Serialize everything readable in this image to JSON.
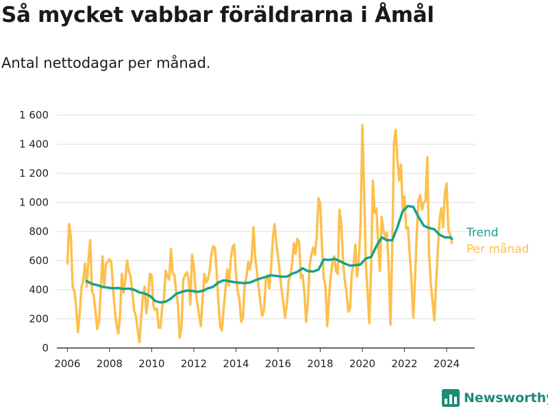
{
  "title": "Så mycket vabbar föräldrarna i Åmål",
  "subtitle": "Antal nettodagar per månad.",
  "brand": {
    "name": "Newsworthy",
    "icon": "bar-chart-logo-icon"
  },
  "colors": {
    "monthly": "#fdc04d",
    "trend": "#17a08c",
    "grid": "#dcdcdc",
    "axis": "#333333"
  },
  "chart_data": {
    "type": "line",
    "x_ticks": [
      "2006",
      "2008",
      "2010",
      "2012",
      "2014",
      "2016",
      "2018",
      "2020",
      "2022",
      "2024"
    ],
    "y_ticks": [
      "0",
      "200",
      "400",
      "600",
      "800",
      "1 000",
      "1 200",
      "1 400",
      "1 600"
    ],
    "y_tick_values": [
      0,
      200,
      400,
      600,
      800,
      1000,
      1200,
      1400,
      1600
    ],
    "xlim": [
      "2005-07",
      "2025-05"
    ],
    "ylim": [
      0,
      1600
    ],
    "grid": true,
    "legend": "right",
    "series": [
      {
        "name": "Per månad",
        "color": "#fdc04d",
        "points": [
          [
            "2006-01",
            580
          ],
          [
            "2006-02",
            850
          ],
          [
            "2006-03",
            760
          ],
          [
            "2006-04",
            420
          ],
          [
            "2006-05",
            390
          ],
          [
            "2006-06",
            280
          ],
          [
            "2006-07",
            110
          ],
          [
            "2006-08",
            230
          ],
          [
            "2006-09",
            420
          ],
          [
            "2006-10",
            460
          ],
          [
            "2006-11",
            580
          ],
          [
            "2006-12",
            420
          ],
          [
            "2007-01",
            600
          ],
          [
            "2007-02",
            740
          ],
          [
            "2007-03",
            390
          ],
          [
            "2007-04",
            360
          ],
          [
            "2007-05",
            250
          ],
          [
            "2007-06",
            130
          ],
          [
            "2007-07",
            180
          ],
          [
            "2007-08",
            390
          ],
          [
            "2007-09",
            630
          ],
          [
            "2007-10",
            430
          ],
          [
            "2007-11",
            580
          ],
          [
            "2007-12",
            590
          ],
          [
            "2008-01",
            610
          ],
          [
            "2008-02",
            590
          ],
          [
            "2008-03",
            410
          ],
          [
            "2008-04",
            260
          ],
          [
            "2008-05",
            160
          ],
          [
            "2008-06",
            100
          ],
          [
            "2008-07",
            230
          ],
          [
            "2008-08",
            510
          ],
          [
            "2008-09",
            380
          ],
          [
            "2008-10",
            470
          ],
          [
            "2008-11",
            600
          ],
          [
            "2008-12",
            530
          ],
          [
            "2009-01",
            490
          ],
          [
            "2009-02",
            390
          ],
          [
            "2009-03",
            260
          ],
          [
            "2009-04",
            220
          ],
          [
            "2009-05",
            130
          ],
          [
            "2009-06",
            40
          ],
          [
            "2009-07",
            200
          ],
          [
            "2009-08",
            360
          ],
          [
            "2009-09",
            420
          ],
          [
            "2009-10",
            240
          ],
          [
            "2009-11",
            350
          ],
          [
            "2009-12",
            510
          ],
          [
            "2010-01",
            500
          ],
          [
            "2010-02",
            290
          ],
          [
            "2010-03",
            260
          ],
          [
            "2010-04",
            270
          ],
          [
            "2010-05",
            140
          ],
          [
            "2010-06",
            140
          ],
          [
            "2010-07",
            280
          ],
          [
            "2010-08",
            340
          ],
          [
            "2010-09",
            530
          ],
          [
            "2010-10",
            490
          ],
          [
            "2010-11",
            470
          ],
          [
            "2010-12",
            680
          ],
          [
            "2011-01",
            510
          ],
          [
            "2011-02",
            500
          ],
          [
            "2011-03",
            380
          ],
          [
            "2011-04",
            300
          ],
          [
            "2011-05",
            70
          ],
          [
            "2011-06",
            140
          ],
          [
            "2011-07",
            470
          ],
          [
            "2011-08",
            500
          ],
          [
            "2011-09",
            520
          ],
          [
            "2011-10",
            480
          ],
          [
            "2011-11",
            300
          ],
          [
            "2011-12",
            640
          ],
          [
            "2012-01",
            560
          ],
          [
            "2012-02",
            390
          ],
          [
            "2012-03",
            310
          ],
          [
            "2012-04",
            230
          ],
          [
            "2012-05",
            150
          ],
          [
            "2012-06",
            330
          ],
          [
            "2012-07",
            510
          ],
          [
            "2012-08",
            450
          ],
          [
            "2012-09",
            470
          ],
          [
            "2012-10",
            530
          ],
          [
            "2012-11",
            640
          ],
          [
            "2012-12",
            700
          ],
          [
            "2013-01",
            690
          ],
          [
            "2013-02",
            530
          ],
          [
            "2013-03",
            320
          ],
          [
            "2013-04",
            150
          ],
          [
            "2013-05",
            120
          ],
          [
            "2013-06",
            270
          ],
          [
            "2013-07",
            400
          ],
          [
            "2013-08",
            540
          ],
          [
            "2013-09",
            430
          ],
          [
            "2013-10",
            600
          ],
          [
            "2013-11",
            690
          ],
          [
            "2013-12",
            710
          ],
          [
            "2014-01",
            520
          ],
          [
            "2014-02",
            390
          ],
          [
            "2014-03",
            330
          ],
          [
            "2014-04",
            180
          ],
          [
            "2014-05",
            210
          ],
          [
            "2014-06",
            430
          ],
          [
            "2014-07",
            490
          ],
          [
            "2014-08",
            590
          ],
          [
            "2014-09",
            540
          ],
          [
            "2014-10",
            620
          ],
          [
            "2014-11",
            830
          ],
          [
            "2014-12",
            620
          ],
          [
            "2015-01",
            520
          ],
          [
            "2015-02",
            410
          ],
          [
            "2015-03",
            310
          ],
          [
            "2015-04",
            220
          ],
          [
            "2015-05",
            260
          ],
          [
            "2015-06",
            470
          ],
          [
            "2015-07",
            500
          ],
          [
            "2015-08",
            410
          ],
          [
            "2015-09",
            550
          ],
          [
            "2015-10",
            750
          ],
          [
            "2015-11",
            850
          ],
          [
            "2015-12",
            720
          ],
          [
            "2016-01",
            630
          ],
          [
            "2016-02",
            510
          ],
          [
            "2016-03",
            400
          ],
          [
            "2016-04",
            310
          ],
          [
            "2016-05",
            210
          ],
          [
            "2016-06",
            300
          ],
          [
            "2016-07",
            460
          ],
          [
            "2016-08",
            500
          ],
          [
            "2016-09",
            580
          ],
          [
            "2016-10",
            720
          ],
          [
            "2016-11",
            650
          ],
          [
            "2016-12",
            750
          ],
          [
            "2017-01",
            730
          ],
          [
            "2017-02",
            480
          ],
          [
            "2017-03",
            500
          ],
          [
            "2017-04",
            380
          ],
          [
            "2017-05",
            180
          ],
          [
            "2017-06",
            320
          ],
          [
            "2017-07",
            570
          ],
          [
            "2017-08",
            640
          ],
          [
            "2017-09",
            690
          ],
          [
            "2017-10",
            640
          ],
          [
            "2017-11",
            760
          ],
          [
            "2017-12",
            1030
          ],
          [
            "2018-01",
            990
          ],
          [
            "2018-02",
            700
          ],
          [
            "2018-03",
            480
          ],
          [
            "2018-04",
            430
          ],
          [
            "2018-05",
            150
          ],
          [
            "2018-06",
            350
          ],
          [
            "2018-07",
            490
          ],
          [
            "2018-08",
            590
          ],
          [
            "2018-09",
            630
          ],
          [
            "2018-10",
            530
          ],
          [
            "2018-11",
            510
          ],
          [
            "2018-12",
            950
          ],
          [
            "2019-01",
            860
          ],
          [
            "2019-02",
            600
          ],
          [
            "2019-03",
            470
          ],
          [
            "2019-04",
            380
          ],
          [
            "2019-05",
            250
          ],
          [
            "2019-06",
            270
          ],
          [
            "2019-07",
            520
          ],
          [
            "2019-08",
            570
          ],
          [
            "2019-09",
            710
          ],
          [
            "2019-10",
            490
          ],
          [
            "2019-11",
            600
          ],
          [
            "2019-12",
            860
          ],
          [
            "2020-01",
            1530
          ],
          [
            "2020-02",
            1100
          ],
          [
            "2020-03",
            580
          ],
          [
            "2020-04",
            380
          ],
          [
            "2020-05",
            170
          ],
          [
            "2020-06",
            550
          ],
          [
            "2020-07",
            1150
          ],
          [
            "2020-08",
            930
          ],
          [
            "2020-09",
            960
          ],
          [
            "2020-10",
            720
          ],
          [
            "2020-11",
            530
          ],
          [
            "2020-12",
            900
          ],
          [
            "2021-01",
            810
          ],
          [
            "2021-02",
            760
          ],
          [
            "2021-03",
            790
          ],
          [
            "2021-04",
            560
          ],
          [
            "2021-05",
            160
          ],
          [
            "2021-06",
            660
          ],
          [
            "2021-07",
            1400
          ],
          [
            "2021-08",
            1500
          ],
          [
            "2021-09",
            1290
          ],
          [
            "2021-10",
            1150
          ],
          [
            "2021-11",
            1260
          ],
          [
            "2021-12",
            960
          ],
          [
            "2022-01",
            1040
          ],
          [
            "2022-02",
            820
          ],
          [
            "2022-03",
            830
          ],
          [
            "2022-04",
            640
          ],
          [
            "2022-05",
            460
          ],
          [
            "2022-06",
            210
          ],
          [
            "2022-07",
            470
          ],
          [
            "2022-08",
            780
          ],
          [
            "2022-09",
            1020
          ],
          [
            "2022-10",
            1050
          ],
          [
            "2022-11",
            950
          ],
          [
            "2022-12",
            1000
          ],
          [
            "2023-01",
            1010
          ],
          [
            "2023-02",
            1310
          ],
          [
            "2023-03",
            640
          ],
          [
            "2023-04",
            450
          ],
          [
            "2023-05",
            310
          ],
          [
            "2023-06",
            190
          ],
          [
            "2023-07",
            440
          ],
          [
            "2023-08",
            670
          ],
          [
            "2023-09",
            880
          ],
          [
            "2023-10",
            960
          ],
          [
            "2023-11",
            830
          ],
          [
            "2023-12",
            1060
          ],
          [
            "2024-01",
            1130
          ],
          [
            "2024-02",
            810
          ],
          [
            "2024-03",
            780
          ],
          [
            "2024-04",
            720
          ]
        ]
      },
      {
        "name": "Trend",
        "color": "#17a08c",
        "points": [
          [
            "2006-12",
            460
          ],
          [
            "2007-03",
            440
          ],
          [
            "2007-06",
            432
          ],
          [
            "2007-09",
            420
          ],
          [
            "2007-12",
            415
          ],
          [
            "2008-03",
            410
          ],
          [
            "2008-06",
            412
          ],
          [
            "2008-09",
            405
          ],
          [
            "2008-12",
            408
          ],
          [
            "2009-03",
            400
          ],
          [
            "2009-06",
            382
          ],
          [
            "2009-09",
            375
          ],
          [
            "2009-12",
            358
          ],
          [
            "2010-03",
            323
          ],
          [
            "2010-06",
            313
          ],
          [
            "2010-09",
            318
          ],
          [
            "2010-12",
            340
          ],
          [
            "2011-03",
            372
          ],
          [
            "2011-06",
            385
          ],
          [
            "2011-09",
            395
          ],
          [
            "2011-12",
            392
          ],
          [
            "2012-03",
            385
          ],
          [
            "2012-06",
            392
          ],
          [
            "2012-09",
            410
          ],
          [
            "2012-12",
            420
          ],
          [
            "2013-03",
            450
          ],
          [
            "2013-06",
            465
          ],
          [
            "2013-09",
            460
          ],
          [
            "2013-12",
            452
          ],
          [
            "2014-03",
            448
          ],
          [
            "2014-06",
            445
          ],
          [
            "2014-09",
            450
          ],
          [
            "2014-12",
            465
          ],
          [
            "2015-03",
            478
          ],
          [
            "2015-06",
            488
          ],
          [
            "2015-09",
            500
          ],
          [
            "2015-12",
            495
          ],
          [
            "2016-03",
            490
          ],
          [
            "2016-06",
            490
          ],
          [
            "2016-09",
            510
          ],
          [
            "2016-12",
            523
          ],
          [
            "2017-03",
            548
          ],
          [
            "2017-06",
            528
          ],
          [
            "2017-09",
            525
          ],
          [
            "2017-12",
            538
          ],
          [
            "2018-03",
            608
          ],
          [
            "2018-06",
            604
          ],
          [
            "2018-09",
            612
          ],
          [
            "2018-12",
            598
          ],
          [
            "2019-03",
            580
          ],
          [
            "2019-06",
            566
          ],
          [
            "2019-09",
            569
          ],
          [
            "2019-12",
            574
          ],
          [
            "2020-03",
            615
          ],
          [
            "2020-06",
            625
          ],
          [
            "2020-09",
            700
          ],
          [
            "2020-12",
            760
          ],
          [
            "2021-03",
            740
          ],
          [
            "2021-06",
            740
          ],
          [
            "2021-09",
            830
          ],
          [
            "2021-12",
            940
          ],
          [
            "2022-03",
            975
          ],
          [
            "2022-06",
            970
          ],
          [
            "2022-09",
            900
          ],
          [
            "2022-12",
            840
          ],
          [
            "2023-03",
            825
          ],
          [
            "2023-06",
            815
          ],
          [
            "2023-09",
            778
          ],
          [
            "2023-12",
            760
          ],
          [
            "2024-03",
            760
          ],
          [
            "2024-04",
            750
          ]
        ]
      }
    ]
  }
}
